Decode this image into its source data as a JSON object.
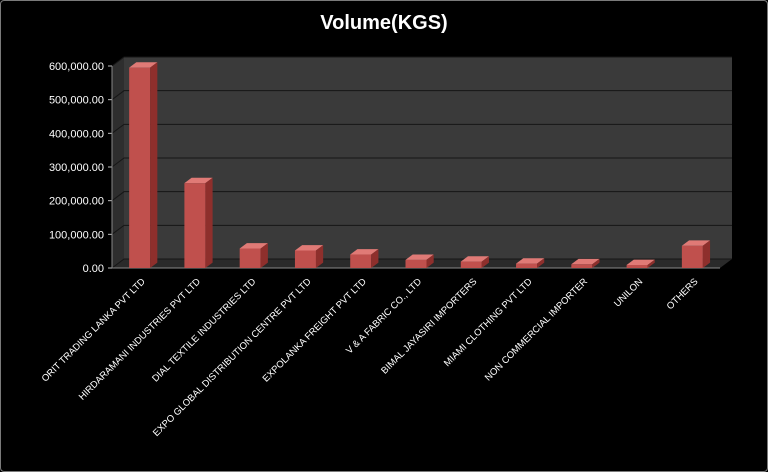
{
  "chart_data": {
    "type": "bar",
    "title": "Volume(KGS)",
    "xlabel": "",
    "ylabel": "",
    "ylim": [
      0,
      600000
    ],
    "yticks": [
      "0.00",
      "100,000.00",
      "200,000.00",
      "300,000.00",
      "400,000.00",
      "500,000.00",
      "600,000.00"
    ],
    "categories": [
      "ORIT TRADING LANKA PVT LTD",
      "HIRDARAMANI INDUSTRIES  PVT LTD",
      "DIAL TEXTILE INDUSTRIES  LTD",
      "EXPO GLOBAL DISTRIBUTION CENTRE PVT LTD",
      "EXPOLANKA FREIGHT PVT LTD",
      "V & A FABRIC CO., LTD",
      "BIMAL JAYASIRI IMPORTERS",
      "MIAMI CLOTHING PVT LTD",
      "NON COMMERCIAL IMPORTER",
      "UNILON",
      "OTHERS"
    ],
    "values": [
      595000,
      252000,
      58000,
      52000,
      40000,
      24000,
      19000,
      13000,
      11000,
      9000,
      66000
    ],
    "colors": {
      "bar_front": "#c0504d",
      "bar_top": "#e07a76",
      "bar_side": "#8e2f2c",
      "wall": "#3a3a3a",
      "floor": "#2a2a2a",
      "grid": "#161616"
    },
    "grid": true,
    "legend": "none"
  }
}
